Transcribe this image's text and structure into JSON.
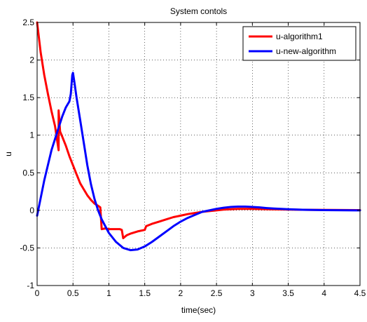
{
  "chart_data": {
    "type": "line",
    "title": "System contols",
    "xlabel": "time(sec)",
    "ylabel": "u",
    "xlim": [
      0,
      4.5
    ],
    "ylim": [
      -1,
      2.5
    ],
    "xticks": [
      0,
      0.5,
      1,
      1.5,
      2,
      2.5,
      3,
      3.5,
      4,
      4.5
    ],
    "xtick_labels": [
      "0",
      "0.5",
      "1",
      "1.5",
      "2",
      "2.5",
      "3",
      "3.5",
      "4",
      "4.5"
    ],
    "yticks": [
      -1,
      -0.5,
      0,
      0.5,
      1,
      1.5,
      2,
      2.5
    ],
    "ytick_labels": [
      "-1",
      "-0.5",
      "0",
      "0.5",
      "1",
      "1.5",
      "2",
      "2.5"
    ],
    "grid": true,
    "legend_position": "top-right",
    "series": [
      {
        "name": "u-algorithm1",
        "color": "#ff0000",
        "points": [
          [
            0,
            2.5
          ],
          [
            0.05,
            2.1
          ],
          [
            0.1,
            1.8
          ],
          [
            0.15,
            1.55
          ],
          [
            0.2,
            1.32
          ],
          [
            0.25,
            1.12
          ],
          [
            0.3,
            0.8
          ],
          [
            0.3,
            1.33
          ],
          [
            0.32,
            1.05
          ],
          [
            0.35,
            0.98
          ],
          [
            0.4,
            0.86
          ],
          [
            0.45,
            0.72
          ],
          [
            0.5,
            0.6
          ],
          [
            0.55,
            0.48
          ],
          [
            0.6,
            0.36
          ],
          [
            0.65,
            0.28
          ],
          [
            0.7,
            0.2
          ],
          [
            0.75,
            0.14
          ],
          [
            0.8,
            0.09
          ],
          [
            0.85,
            0.06
          ],
          [
            0.88,
            0.04
          ],
          [
            0.9,
            -0.25
          ],
          [
            0.95,
            -0.24
          ],
          [
            1.0,
            -0.25
          ],
          [
            1.05,
            -0.25
          ],
          [
            1.1,
            -0.25
          ],
          [
            1.15,
            -0.25
          ],
          [
            1.18,
            -0.26
          ],
          [
            1.2,
            -0.37
          ],
          [
            1.25,
            -0.33
          ],
          [
            1.3,
            -0.31
          ],
          [
            1.4,
            -0.28
          ],
          [
            1.5,
            -0.26
          ],
          [
            1.52,
            -0.21
          ],
          [
            1.6,
            -0.18
          ],
          [
            1.7,
            -0.15
          ],
          [
            1.8,
            -0.12
          ],
          [
            1.9,
            -0.09
          ],
          [
            2.0,
            -0.07
          ],
          [
            2.1,
            -0.05
          ],
          [
            2.2,
            -0.035
          ],
          [
            2.3,
            -0.02
          ],
          [
            2.4,
            -0.01
          ],
          [
            2.5,
            0.0
          ],
          [
            2.6,
            0.01
          ],
          [
            2.7,
            0.015
          ],
          [
            2.8,
            0.02
          ],
          [
            3.0,
            0.02
          ],
          [
            3.2,
            0.015
          ],
          [
            3.5,
            0.01
          ],
          [
            3.8,
            0.007
          ],
          [
            4.1,
            0.005
          ],
          [
            4.5,
            0.003
          ]
        ]
      },
      {
        "name": "u-new-algorithm",
        "color": "#0000ff",
        "points": [
          [
            0,
            -0.07
          ],
          [
            0.1,
            0.4
          ],
          [
            0.2,
            0.8
          ],
          [
            0.3,
            1.1
          ],
          [
            0.35,
            1.25
          ],
          [
            0.4,
            1.37
          ],
          [
            0.45,
            1.45
          ],
          [
            0.47,
            1.55
          ],
          [
            0.49,
            1.8
          ],
          [
            0.5,
            1.83
          ],
          [
            0.52,
            1.7
          ],
          [
            0.55,
            1.5
          ],
          [
            0.6,
            1.2
          ],
          [
            0.65,
            0.9
          ],
          [
            0.7,
            0.6
          ],
          [
            0.75,
            0.35
          ],
          [
            0.8,
            0.15
          ],
          [
            0.85,
            0.0
          ],
          [
            0.9,
            -0.12
          ],
          [
            1.0,
            -0.3
          ],
          [
            1.1,
            -0.42
          ],
          [
            1.2,
            -0.5
          ],
          [
            1.3,
            -0.53
          ],
          [
            1.4,
            -0.52
          ],
          [
            1.5,
            -0.48
          ],
          [
            1.6,
            -0.42
          ],
          [
            1.7,
            -0.35
          ],
          [
            1.8,
            -0.28
          ],
          [
            1.9,
            -0.21
          ],
          [
            2.0,
            -0.15
          ],
          [
            2.1,
            -0.1
          ],
          [
            2.2,
            -0.06
          ],
          [
            2.3,
            -0.02
          ],
          [
            2.4,
            0.0
          ],
          [
            2.5,
            0.02
          ],
          [
            2.6,
            0.035
          ],
          [
            2.7,
            0.045
          ],
          [
            2.8,
            0.05
          ],
          [
            2.9,
            0.05
          ],
          [
            3.0,
            0.045
          ],
          [
            3.1,
            0.04
          ],
          [
            3.2,
            0.03
          ],
          [
            3.3,
            0.025
          ],
          [
            3.5,
            0.015
          ],
          [
            3.7,
            0.008
          ],
          [
            4.0,
            0.003
          ],
          [
            4.5,
            0.0
          ]
        ]
      }
    ]
  }
}
